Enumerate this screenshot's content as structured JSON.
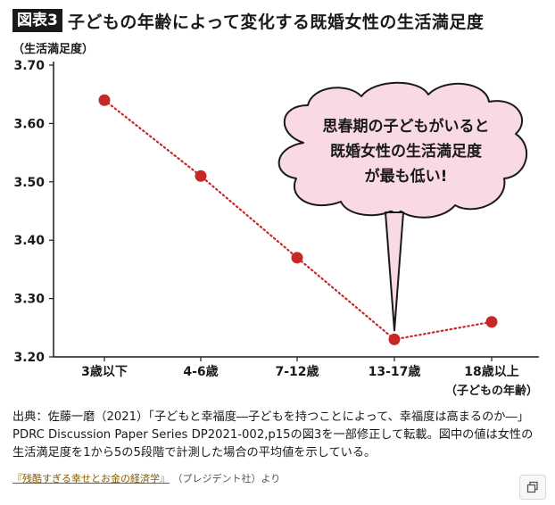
{
  "header": {
    "badge": "図表3",
    "title": "子どもの年齢によって変化する既婚女性の生活満足度"
  },
  "chart_data": {
    "type": "line",
    "ylabel": "（生活満足度）",
    "categories": [
      "3歳以下",
      "4-6歳",
      "7-12歳",
      "13-17歳",
      "18歳以上"
    ],
    "category_sub": [
      "",
      "",
      "",
      "",
      "（子どもの年齢）"
    ],
    "values": [
      3.64,
      3.51,
      3.37,
      3.23,
      3.26
    ],
    "ylim": [
      3.2,
      3.7
    ],
    "yticks": [
      "3.70",
      "3.60",
      "3.50",
      "3.40",
      "3.30",
      "3.20"
    ],
    "ytick_values": [
      3.7,
      3.6,
      3.5,
      3.4,
      3.3,
      3.2
    ],
    "line_color": "#c62828",
    "annotation": {
      "lines": [
        "思春期の子どもがいると",
        "既婚女性の生活満足度",
        "が最も低い!"
      ],
      "fill": "#f9d9e6",
      "target_index": 3
    }
  },
  "source": {
    "text": "出典：佐藤一磨（2021）「子どもと幸福度―子どもを持つことによって、幸福度は高まるのか―」PDRC Discussion Paper Series DP2021-002,p15の図3を一部修正して転載。図中の値は女性の生活満足度を1から5の5段階で計測した場合の平均値を示している。"
  },
  "footer": {
    "book_title": "『残酷すぎる幸せとお金の経済学』",
    "publisher": "（プレジデント社）より"
  },
  "icons": {
    "copy": "copy-icon"
  }
}
